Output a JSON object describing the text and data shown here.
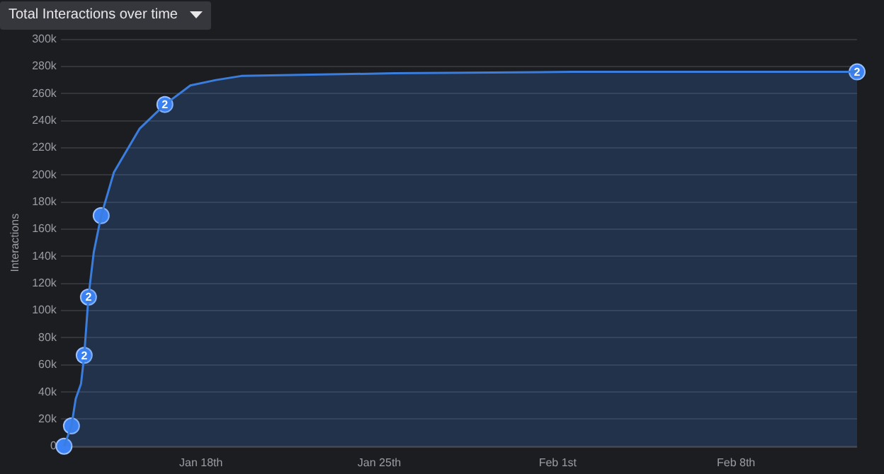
{
  "chart_data": {
    "type": "area",
    "title": "Total Interactions over time",
    "ylabel": "Interactions",
    "xlim": [
      "--01-12T12:00",
      "--02-12T18:00"
    ],
    "xticks": [
      {
        "value": "--01-18",
        "label": "Jan 18th"
      },
      {
        "value": "--01-25",
        "label": "Jan 25th"
      },
      {
        "value": "--02-01",
        "label": "Feb 1st"
      },
      {
        "value": "--02-08",
        "label": "Feb 8th"
      }
    ],
    "ylim": [
      0,
      300000
    ],
    "yticks": [
      {
        "value": 0,
        "label": "0"
      },
      {
        "value": 20000,
        "label": "20k"
      },
      {
        "value": 40000,
        "label": "40k"
      },
      {
        "value": 60000,
        "label": "60k"
      },
      {
        "value": 80000,
        "label": "80k"
      },
      {
        "value": 100000,
        "label": "100k"
      },
      {
        "value": 120000,
        "label": "120k"
      },
      {
        "value": 140000,
        "label": "140k"
      },
      {
        "value": 160000,
        "label": "160k"
      },
      {
        "value": 180000,
        "label": "180k"
      },
      {
        "value": 200000,
        "label": "200k"
      },
      {
        "value": 220000,
        "label": "220k"
      },
      {
        "value": 240000,
        "label": "240k"
      },
      {
        "value": 260000,
        "label": "260k"
      },
      {
        "value": 280000,
        "label": "280k"
      },
      {
        "value": 300000,
        "label": "300k"
      }
    ],
    "grid": "y",
    "legend": false,
    "series": [
      {
        "color": "#3b7ddd",
        "x": [
          "--01-12T15:00",
          "--01-12T22:00",
          "--01-13T02:00",
          "--01-13T07:00",
          "--01-13T10:00",
          "--01-13T14:00",
          "--01-13T19:00",
          "--01-14T02:00",
          "--01-14T14:00",
          "--01-15T14:00",
          "--01-16T14:00",
          "--01-17T14:00",
          "--01-18T14:00",
          "--01-19T14:00",
          "--01-25T14:00",
          "--02-01T14:00",
          "--02-12T18:00"
        ],
        "values": [
          0,
          15000,
          35000,
          46000,
          67000,
          110000,
          143000,
          170000,
          202000,
          234000,
          252000,
          266000,
          270000,
          273000,
          275000,
          276000,
          276000
        ]
      },
      {
        "type": "scatter",
        "color": "#3b82f6",
        "marker": "circle",
        "x": [
          "--01-12T15:00",
          "--01-12T22:00",
          "--01-13T10:00",
          "--01-13T14:00",
          "--01-14T02:00",
          "--01-16T14:00",
          "--02-12T18:00"
        ],
        "values": [
          0,
          15000,
          67000,
          110000,
          170000,
          252000,
          276000
        ]
      }
    ],
    "annotations": [
      {
        "text": "2",
        "x": "--01-13T10:00",
        "y": 67000
      },
      {
        "text": "2",
        "x": "--01-13T14:00",
        "y": 110000
      },
      {
        "text": "2",
        "x": "--01-16T14:00",
        "y": 252000
      },
      {
        "text": "2",
        "x": "--02-12T18:00",
        "y": 276000
      }
    ]
  }
}
